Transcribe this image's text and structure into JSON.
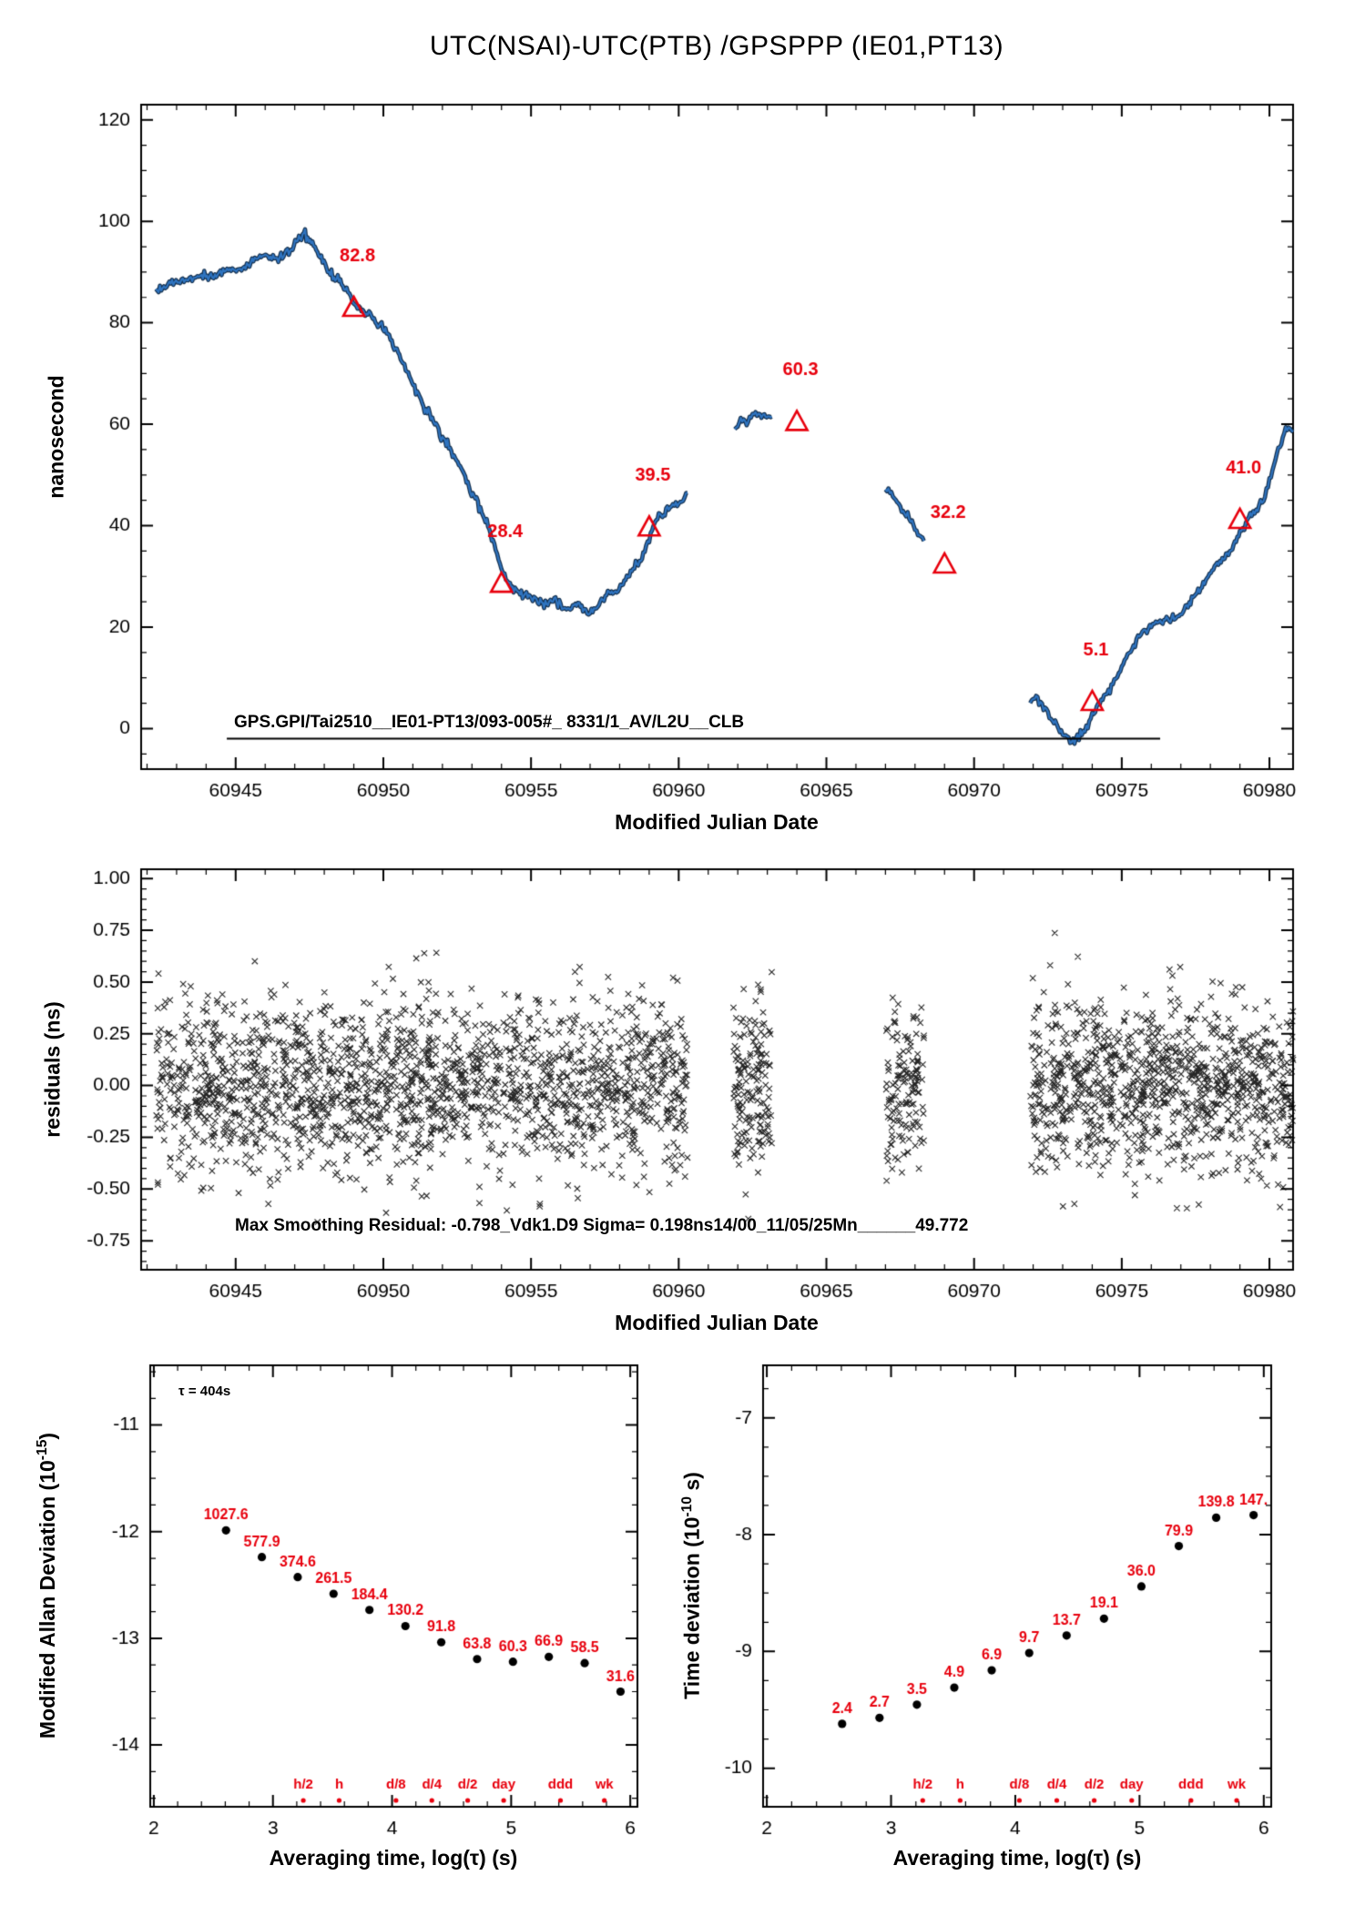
{
  "title": "UTC(NSAI)-UTC(PTB)  /GPSPPP  (IE01,PT13)",
  "colors": {
    "line_blue": "#2f74c0",
    "line_edge": "#14304e",
    "accent_red": "#e8000d",
    "axis_black": "#000000"
  },
  "labels": {
    "mjd_axis": "Modified Julian Date",
    "avg_axis": "Averaging time, log(τ) (s)",
    "top_ylabel": "nanosecond",
    "mid_ylabel": "residuals (ns)",
    "mdev_ylabel_prefix": "Modified Allan Deviation (10",
    "mdev_ylabel_sup": "-15",
    "mdev_ylabel_suffix": ")",
    "tdev_ylabel_prefix": "Time deviation (10",
    "tdev_ylabel_sup": "-10",
    "tdev_ylabel_suffix": " s)",
    "tau_note": "τ = 404s",
    "gps_annotation": "GPS.GPI/Tai2510__IE01-PT13/093-005#_  8331/1_AV/L2U__CLB",
    "residual_annotation": "Max Smoothing Residual: -0.798_Vdk1.D9  Sigma= 0.198ns14/00_11/05/25Mn______49.772"
  },
  "chart_data": [
    {
      "id": "phase",
      "type": "line",
      "title": "UTC(NSAI)-UTC(PTB)  /GPSPPP  (IE01,PT13)",
      "xlabel": "Modified Julian Date",
      "ylabel": "nanosecond",
      "xlim": [
        60941.8,
        60980.8
      ],
      "ylim": [
        -8,
        123
      ],
      "xticks": [
        60945,
        60950,
        60955,
        60960,
        60965,
        60970,
        60975,
        60980
      ],
      "yticks": [
        0,
        20,
        40,
        60,
        80,
        100,
        120
      ],
      "x_minor_step": 1,
      "y_minor_step": 5,
      "y_decimals": 0,
      "segments": [
        [
          [
            60942.3,
            86.5
          ],
          [
            60942.8,
            88.0
          ],
          [
            60943.3,
            88.5
          ],
          [
            60943.8,
            89.0
          ],
          [
            60944.3,
            89.5
          ],
          [
            60944.8,
            90.5
          ],
          [
            60945.2,
            90.5
          ],
          [
            60945.6,
            92.5
          ],
          [
            60946.0,
            93.5
          ],
          [
            60946.4,
            92.5
          ],
          [
            60946.8,
            94.0
          ],
          [
            60947.1,
            96.5
          ],
          [
            60947.35,
            97.5
          ],
          [
            60947.6,
            95.5
          ],
          [
            60947.9,
            92.5
          ],
          [
            60948.2,
            90.0
          ],
          [
            60948.5,
            88.5
          ],
          [
            60948.8,
            86.0
          ],
          [
            60949.0,
            84.0
          ],
          [
            60949.3,
            82.5
          ],
          [
            60949.6,
            81.0
          ],
          [
            60949.9,
            79.5
          ],
          [
            60950.2,
            77.5
          ],
          [
            60950.5,
            74.0
          ],
          [
            60950.8,
            70.5
          ],
          [
            60951.1,
            67.0
          ],
          [
            60951.4,
            63.5
          ],
          [
            60951.7,
            60.5
          ],
          [
            60952.0,
            57.5
          ],
          [
            60952.3,
            54.5
          ],
          [
            60952.6,
            51.5
          ],
          [
            60952.9,
            48.0
          ],
          [
            60953.2,
            44.5
          ],
          [
            60953.5,
            40.5
          ],
          [
            60953.8,
            35.5
          ],
          [
            60954.0,
            31.5
          ],
          [
            60954.2,
            29.0
          ],
          [
            60954.5,
            27.0
          ],
          [
            60954.8,
            26.0
          ],
          [
            60955.1,
            25.5
          ],
          [
            60955.4,
            24.5
          ],
          [
            60955.7,
            25.5
          ],
          [
            60956.0,
            24.5
          ],
          [
            60956.2,
            23.5
          ],
          [
            60956.5,
            24.5
          ],
          [
            60956.8,
            23.5
          ],
          [
            60957.0,
            23.0
          ],
          [
            60957.3,
            24.0
          ],
          [
            60957.6,
            26.5
          ],
          [
            60957.9,
            27.0
          ],
          [
            60958.2,
            29.5
          ],
          [
            60958.5,
            31.5
          ],
          [
            60958.8,
            34.0
          ],
          [
            60959.0,
            37.5
          ],
          [
            60959.2,
            40.5
          ],
          [
            60959.45,
            42.5
          ],
          [
            60959.7,
            43.5
          ],
          [
            60959.9,
            44.0
          ],
          [
            60960.1,
            45.0
          ],
          [
            60960.3,
            46.5
          ]
        ],
        [
          [
            60961.9,
            59.5
          ],
          [
            60962.1,
            61.0
          ],
          [
            60962.3,
            60.5
          ],
          [
            60962.5,
            61.5
          ],
          [
            60962.7,
            62.0
          ],
          [
            60962.9,
            61.5
          ],
          [
            60963.15,
            61.5
          ]
        ],
        [
          [
            60967.0,
            47.0
          ],
          [
            60967.2,
            46.0
          ],
          [
            60967.4,
            44.5
          ],
          [
            60967.6,
            43.0
          ],
          [
            60967.8,
            41.5
          ],
          [
            60968.0,
            39.5
          ],
          [
            60968.15,
            38.0
          ],
          [
            60968.3,
            37.0
          ]
        ],
        [
          [
            60971.9,
            5.5
          ],
          [
            60972.1,
            6.0
          ],
          [
            60972.3,
            4.5
          ],
          [
            60972.5,
            3.0
          ],
          [
            60972.7,
            1.5
          ],
          [
            60972.9,
            0.0
          ],
          [
            60973.1,
            -1.5
          ],
          [
            60973.3,
            -2.5
          ],
          [
            60973.5,
            -2.0
          ],
          [
            60973.7,
            -1.0
          ],
          [
            60973.9,
            1.0
          ],
          [
            60974.1,
            3.5
          ],
          [
            60974.3,
            5.5
          ],
          [
            60974.5,
            7.0
          ],
          [
            60974.7,
            8.5
          ],
          [
            60974.9,
            11.0
          ],
          [
            60975.1,
            13.5
          ],
          [
            60975.3,
            15.5
          ],
          [
            60975.5,
            17.5
          ],
          [
            60975.7,
            19.0
          ],
          [
            60975.9,
            20.0
          ],
          [
            60976.1,
            20.5
          ],
          [
            60976.3,
            21.0
          ],
          [
            60976.6,
            21.5
          ],
          [
            60976.9,
            22.0
          ],
          [
            60977.2,
            24.0
          ],
          [
            60977.5,
            26.5
          ],
          [
            60977.8,
            29.0
          ],
          [
            60978.1,
            31.5
          ],
          [
            60978.4,
            33.5
          ],
          [
            60978.7,
            35.5
          ],
          [
            60979.0,
            38.5
          ],
          [
            60979.2,
            40.5
          ],
          [
            60979.4,
            42.0
          ],
          [
            60979.6,
            43.5
          ],
          [
            60979.8,
            45.0
          ],
          [
            60980.0,
            49.0
          ],
          [
            60980.2,
            53.0
          ],
          [
            60980.4,
            56.5
          ],
          [
            60980.6,
            59.5
          ],
          [
            60980.8,
            58.5
          ]
        ]
      ],
      "triangles": [
        {
          "x": 60949,
          "y": 82.8,
          "label": "82.8"
        },
        {
          "x": 60954,
          "y": 28.4,
          "label": "28.4"
        },
        {
          "x": 60959,
          "y": 39.5,
          "label": "39.5"
        },
        {
          "x": 60964,
          "y": 60.3,
          "label": "60.3"
        },
        {
          "x": 60969,
          "y": 32.2,
          "label": "32.2"
        },
        {
          "x": 60974,
          "y": 5.1,
          "label": "5.1"
        },
        {
          "x": 60979,
          "y": 41.0,
          "label": "41.0"
        }
      ],
      "annotation_line": {
        "y": -2,
        "x1": 60944.7,
        "x2": 60976.3
      },
      "annotation_text": "GPS.GPI/Tai2510__IE01-PT13/093-005#_  8331/1_AV/L2U__CLB"
    },
    {
      "id": "residuals",
      "type": "scatter",
      "xlabel": "Modified Julian Date",
      "ylabel": "residuals (ns)",
      "xlim": [
        60941.8,
        60980.8
      ],
      "ylim": [
        -0.89,
        1.045
      ],
      "xticks": [
        60945,
        60950,
        60955,
        60960,
        60965,
        60970,
        60975,
        60980
      ],
      "yticks": [
        1.0,
        0.75,
        0.5,
        0.25,
        0.0,
        -0.25,
        -0.5,
        -0.75
      ],
      "x_minor_step": 1,
      "y_minor_step": 0.05,
      "y_decimals": 2,
      "marker": "x",
      "sigma_ns": 0.198,
      "x_ranges": [
        [
          60942.3,
          60960.3,
          1900
        ],
        [
          60961.85,
          60963.15,
          170
        ],
        [
          60967.0,
          60968.3,
          140
        ],
        [
          60971.9,
          60980.8,
          1050
        ]
      ],
      "annotation_text": "Max Smoothing Residual: -0.798_Vdk1.D9  Sigma= 0.198ns14/00_11/05/25Mn______49.772"
    },
    {
      "id": "mdev",
      "type": "scatter",
      "xlabel": "Averaging time, log(τ) (s)",
      "ylabel": "Modified Allan Deviation (10^-15)",
      "xlim": [
        1.97,
        6.06
      ],
      "ylim": [
        -14.58,
        -10.44
      ],
      "xticks": [
        2,
        3,
        4,
        5,
        6
      ],
      "yticks": [
        -11,
        -12,
        -13,
        -14
      ],
      "x_minor_step": 0.2,
      "y_minor_step": 0.25,
      "y_decimals": 0,
      "unit_exponent": -15,
      "tau_note": "τ = 404s",
      "x": [
        2.606,
        2.907,
        3.208,
        3.509,
        3.81,
        4.112,
        4.413,
        4.714,
        5.015,
        5.316,
        5.617,
        5.918
      ],
      "values": [
        1027.6,
        577.9,
        374.6,
        261.5,
        184.4,
        130.2,
        91.8,
        63.8,
        60.3,
        66.9,
        58.5,
        31.6
      ],
      "point_labels": [
        "1027.6",
        "577.9",
        "374.6",
        "261.5",
        "184.4",
        "130.2",
        "91.8",
        "63.8",
        "60.3",
        "66.9",
        "58.5",
        "31.6"
      ],
      "time_marks": [
        {
          "label": "h/2",
          "log_tau": 3.255
        },
        {
          "label": "h",
          "log_tau": 3.556
        },
        {
          "label": "d/8",
          "log_tau": 4.033
        },
        {
          "label": "d/4",
          "log_tau": 4.334
        },
        {
          "label": "d/2",
          "log_tau": 4.635
        },
        {
          "label": "day",
          "log_tau": 4.937
        },
        {
          "label": "ddd",
          "log_tau": 5.414
        },
        {
          "label": "wk",
          "log_tau": 5.782
        }
      ]
    },
    {
      "id": "tdev",
      "type": "scatter",
      "xlabel": "Averaging time, log(τ) (s)",
      "ylabel": "Time deviation (10^-10 s)",
      "xlim": [
        1.97,
        6.06
      ],
      "ylim": [
        -10.33,
        -6.55
      ],
      "xticks": [
        2,
        3,
        4,
        5,
        6
      ],
      "yticks": [
        -7,
        -8,
        -9,
        -10
      ],
      "x_minor_step": 0.2,
      "y_minor_step": 0.25,
      "y_decimals": 0,
      "unit_exponent": -10,
      "x": [
        2.606,
        2.907,
        3.208,
        3.509,
        3.81,
        4.112,
        4.413,
        4.714,
        5.015,
        5.316,
        5.617,
        5.918
      ],
      "values": [
        2.4,
        2.7,
        3.5,
        4.9,
        6.9,
        9.7,
        13.7,
        19.1,
        36.0,
        79.9,
        139.8,
        147.0
      ],
      "point_labels": [
        "2.4",
        "2.7",
        "3.5",
        "4.9",
        "6.9",
        "9.7",
        "13.7",
        "19.1",
        "36.0",
        "79.9",
        "139.8",
        "147."
      ],
      "time_marks": [
        {
          "label": "h/2",
          "log_tau": 3.255
        },
        {
          "label": "h",
          "log_tau": 3.556
        },
        {
          "label": "d/8",
          "log_tau": 4.033
        },
        {
          "label": "d/4",
          "log_tau": 4.334
        },
        {
          "label": "d/2",
          "log_tau": 4.635
        },
        {
          "label": "day",
          "log_tau": 4.937
        },
        {
          "label": "ddd",
          "log_tau": 5.414
        },
        {
          "label": "wk",
          "log_tau": 5.782
        }
      ]
    }
  ]
}
